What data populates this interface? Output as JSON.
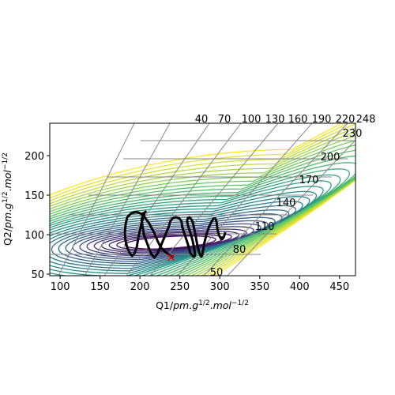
{
  "chart_data": {
    "type": "contour",
    "xlabel": "Q1/pm.g^1/2.mol^-1/2",
    "ylabel": "Q2/pm.g^1/2.mol^-1/2",
    "xlim": [
      87,
      470
    ],
    "ylim": [
      48,
      241
    ],
    "x_ticks": [
      100,
      150,
      200,
      250,
      300,
      350,
      400,
      450
    ],
    "y_ticks": [
      50,
      100,
      150,
      200
    ],
    "contour_level_labels": [
      "40",
      "70",
      "100",
      "130",
      "160",
      "190",
      "220",
      "248",
      "230",
      "200",
      "170",
      "140",
      "110",
      "80",
      "50"
    ],
    "colormap": [
      "#440154",
      "#3b528b",
      "#21918c",
      "#5ec962",
      "#fde725"
    ],
    "trajectory_color": "#000000",
    "trajectory": {
      "x": [
        242,
        238,
        232,
        226,
        222,
        218,
        211,
        203,
        195,
        189,
        184,
        182,
        181,
        182,
        184,
        187,
        190,
        193,
        196,
        198,
        201,
        204,
        206,
        207,
        206,
        204,
        202,
        205,
        210,
        214,
        218,
        222,
        227,
        232,
        236,
        238,
        241,
        245,
        249,
        252,
        253,
        256,
        260,
        263,
        266,
        268,
        269,
        268,
        266,
        263,
        260,
        259,
        260,
        262,
        264,
        266,
        268,
        270,
        272,
        274,
        276,
        277,
        278,
        279,
        281,
        284,
        287,
        290,
        292,
        294,
        295,
        296,
        297,
        299,
        302,
        305,
        307
      ],
      "y": [
        72,
        73,
        78,
        84,
        92,
        102,
        115,
        126,
        129,
        127,
        122,
        113,
        102,
        92,
        84,
        77,
        73,
        76,
        84,
        97,
        110,
        122,
        128,
        129,
        128,
        127,
        118,
        100,
        86,
        76,
        71,
        76,
        88,
        100,
        110,
        117,
        121,
        122,
        121,
        117,
        110,
        100,
        88,
        77,
        73,
        72,
        74,
        82,
        92,
        103,
        112,
        117,
        121,
        122,
        120,
        116,
        107,
        97,
        86,
        78,
        73,
        72,
        74,
        80,
        91,
        103,
        111,
        117,
        120,
        121,
        119,
        116,
        107,
        99,
        94,
        97,
        103
      ]
    },
    "start_marker": {
      "x": 239,
      "y": 71,
      "color": "#ff0000"
    }
  }
}
